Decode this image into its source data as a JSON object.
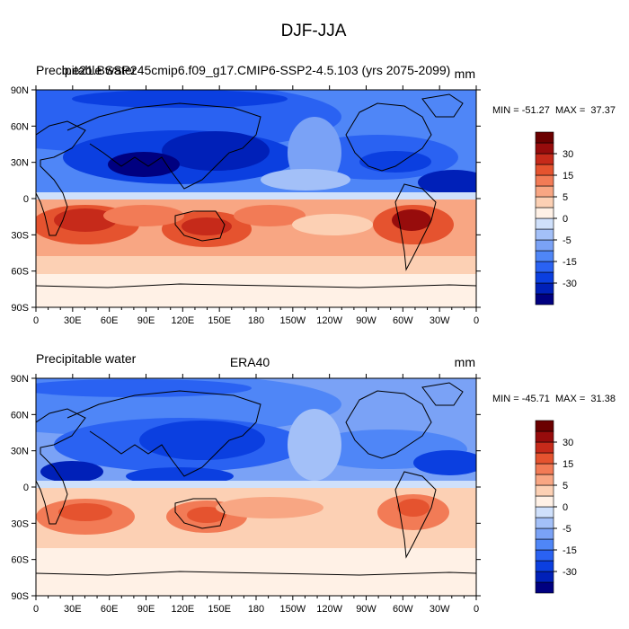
{
  "figure": {
    "title": "DJF-JJA"
  },
  "colorbar": {
    "colors": [
      "#000080",
      "#0020b8",
      "#0b3fe0",
      "#2a62f2",
      "#4f86f7",
      "#7aa2f6",
      "#a3c0f8",
      "#cfe0fb",
      "#fff1e6",
      "#fcd0b4",
      "#f8a683",
      "#f27b56",
      "#e5532f",
      "#c62a1a",
      "#970c0c",
      "#6b0000"
    ],
    "tick_labels": [
      "30",
      "15",
      "5",
      "0",
      "-5",
      "-15",
      "-30"
    ]
  },
  "chart_data": [
    {
      "type": "heatmap",
      "map_kind": "global-lat-lon-contour",
      "left_title": "Precipitable water",
      "center_title": "b.e21.BSSP245cmip6.f09_g17.CMIP6-SSP2-4.5.103 (yrs 2075-2099)",
      "units": "mm",
      "stats_text": "MIN = -51.27  MAX =  37.37",
      "min": -51.27,
      "max": 37.37,
      "x_ticks": [
        "0",
        "30E",
        "60E",
        "90E",
        "120E",
        "150E",
        "180",
        "150W",
        "120W",
        "90W",
        "60W",
        "30W",
        "0"
      ],
      "y_ticks": [
        "90N",
        "60N",
        "30N",
        "0",
        "30S",
        "60S",
        "90S"
      ],
      "xlim": [
        0,
        360
      ],
      "ylim": [
        -90,
        90
      ],
      "contour_levels": [
        -35,
        -30,
        -25,
        -20,
        -15,
        -10,
        -5,
        -2.5,
        0,
        2.5,
        5,
        10,
        15,
        20,
        25,
        30,
        35
      ]
    },
    {
      "type": "heatmap",
      "map_kind": "global-lat-lon-contour",
      "left_title": "Precipitable water",
      "center_title": "ERA40",
      "units": "mm",
      "stats_text": "MIN = -45.71  MAX =  31.38",
      "min": -45.71,
      "max": 31.38,
      "x_ticks": [
        "0",
        "30E",
        "60E",
        "90E",
        "120E",
        "150E",
        "180",
        "150W",
        "120W",
        "90W",
        "60W",
        "30W",
        "0"
      ],
      "y_ticks": [
        "90N",
        "60N",
        "30N",
        "0",
        "30S",
        "60S",
        "90S"
      ],
      "xlim": [
        0,
        360
      ],
      "ylim": [
        -90,
        90
      ],
      "contour_levels": [
        -35,
        -30,
        -25,
        -20,
        -15,
        -10,
        -5,
        -2.5,
        0,
        2.5,
        5,
        10,
        15,
        20,
        25,
        30,
        35
      ]
    }
  ]
}
